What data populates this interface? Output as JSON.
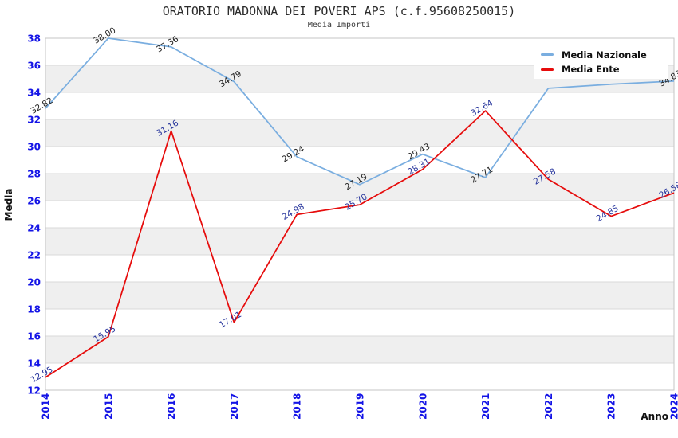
{
  "header": {
    "title": "ORATORIO MADONNA DEI POVERI APS (c.f.95608250015)",
    "subtitle": "Media Importi"
  },
  "legend": {
    "position": "top-right",
    "items": [
      {
        "label": "Media Nazionale",
        "color": "#7aaee0"
      },
      {
        "label": "Media Ente",
        "color": "#e60c0c"
      }
    ]
  },
  "colors": {
    "axis_tick_label": "#1414e6",
    "national_line": "#7aaee0",
    "national_point_label": "#222222",
    "ente_line": "#e60c0c",
    "ente_point_label": "#26349c",
    "band_gray": "#efefef",
    "gridline": "#d9d9d9",
    "plot_border": "#c6c6c6",
    "axis_title": "#111111"
  },
  "chart_data": {
    "type": "line",
    "title": "ORATORIO MADONNA DEI POVERI APS (c.f.95608250015)",
    "subtitle": "Media Importi",
    "xlabel": "Anno",
    "ylabel": "Media",
    "x": [
      2014,
      2015,
      2016,
      2017,
      2018,
      2019,
      2020,
      2021,
      2022,
      2023,
      2024
    ],
    "ylim": [
      12,
      38
    ],
    "ytick_step": 2,
    "grid": "horizontal gridlines every 2 units with alternating white/gray bands",
    "legend_position": "top-right inside plot",
    "series": [
      {
        "name": "Media Nazionale",
        "color": "#7aaee0",
        "label_color": "#222222",
        "values": [
          32.82,
          38.0,
          37.36,
          34.79,
          29.24,
          27.19,
          29.43,
          27.71,
          34.3,
          34.6,
          34.83
        ],
        "labels": [
          "32.82",
          "38.00",
          "37.36",
          "34.79",
          "29.24",
          "27.19",
          "29.43",
          "27.71",
          null,
          null,
          "34.83"
        ],
        "note": "2022 and 2023 point labels hidden behind legend box; values estimated from line position"
      },
      {
        "name": "Media Ente",
        "color": "#e60c0c",
        "label_color": "#26349c",
        "values": [
          12.95,
          15.95,
          31.16,
          17.01,
          24.98,
          25.7,
          28.31,
          32.64,
          27.58,
          24.85,
          26.58
        ],
        "labels": [
          "12.95",
          "15.95",
          "31.16",
          "17.01",
          "24.98",
          "25.70",
          "28.31",
          "32.64",
          "27.58",
          "24.85",
          "26.58"
        ]
      }
    ]
  }
}
